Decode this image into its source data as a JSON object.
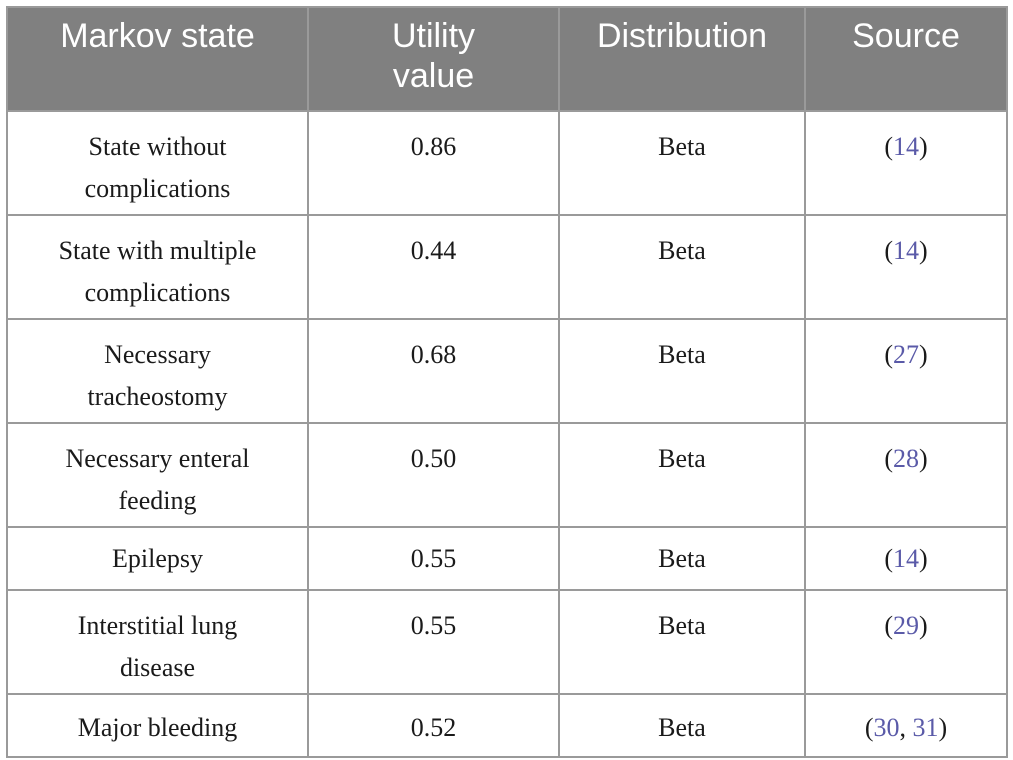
{
  "headers": [
    "Markov state",
    "Utility value",
    "Distribution",
    "Source"
  ],
  "rows": [
    {
      "state": "State without complications",
      "utility": "0.86",
      "distribution": "Beta",
      "source": [
        "14"
      ]
    },
    {
      "state": "State with multiple complications",
      "utility": "0.44",
      "distribution": "Beta",
      "source": [
        "14"
      ]
    },
    {
      "state": "Necessary tracheostomy",
      "utility": "0.68",
      "distribution": "Beta",
      "source": [
        "27"
      ]
    },
    {
      "state": "Necessary enteral feeding",
      "utility": "0.50",
      "distribution": "Beta",
      "source": [
        "28"
      ]
    },
    {
      "state": "Epilepsy",
      "utility": "0.55",
      "distribution": "Beta",
      "source": [
        "14"
      ]
    },
    {
      "state": "Interstitial lung disease",
      "utility": "0.55",
      "distribution": "Beta",
      "source": [
        "29"
      ]
    },
    {
      "state": "Major bleeding",
      "utility": "0.52",
      "distribution": "Beta",
      "source": [
        "30",
        "31"
      ]
    }
  ]
}
